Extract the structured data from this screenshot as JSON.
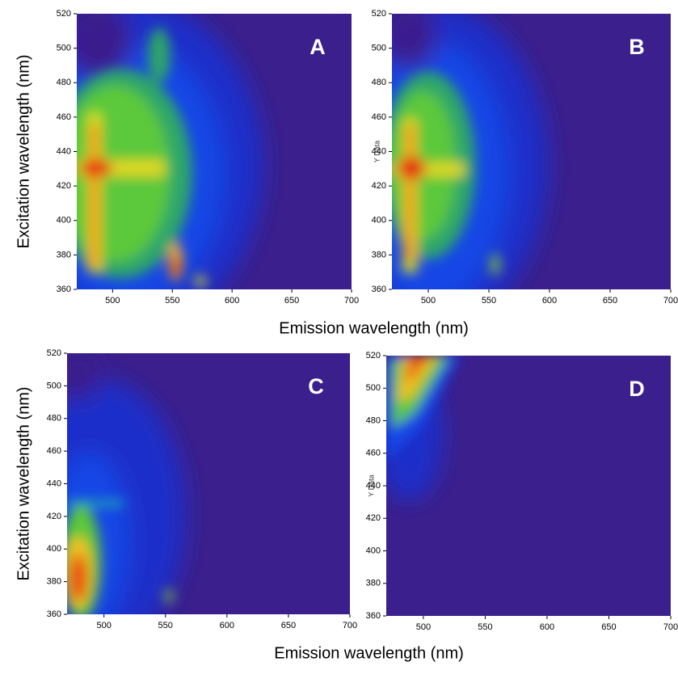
{
  "chart_data": [
    {
      "type": "contour",
      "panel_label": "A",
      "xlabel": "Emission wavelength (nm)",
      "ylabel": "Excitation wavelength (nm)",
      "xlim": [
        470,
        700
      ],
      "ylim": [
        360,
        520
      ],
      "xticks": [
        500,
        550,
        600,
        650,
        700
      ],
      "yticks": [
        360,
        380,
        400,
        420,
        440,
        460,
        480,
        500,
        520
      ]
    },
    {
      "type": "contour",
      "panel_label": "B",
      "ylabel": "Y Data",
      "xlim": [
        470,
        700
      ],
      "ylim": [
        360,
        520
      ],
      "xticks": [
        500,
        550,
        600,
        650,
        700
      ],
      "yticks": [
        360,
        380,
        400,
        420,
        440,
        460,
        480,
        500,
        520
      ]
    },
    {
      "type": "contour",
      "panel_label": "C",
      "xlabel": "Emission wavelength (nm)",
      "ylabel": "Excitation wavelength (nm)",
      "xlim": [
        470,
        700
      ],
      "ylim": [
        360,
        520
      ],
      "xticks": [
        500,
        550,
        600,
        650,
        700
      ],
      "yticks": [
        360,
        380,
        400,
        420,
        440,
        460,
        480,
        500,
        520
      ]
    },
    {
      "type": "contour",
      "panel_label": "D",
      "ylabel": "Y Data",
      "xlim": [
        470,
        700
      ],
      "ylim": [
        360,
        520
      ],
      "xticks": [
        500,
        550,
        600,
        650,
        700
      ],
      "yticks": [
        360,
        380,
        400,
        420,
        440,
        460,
        480,
        500,
        520
      ]
    }
  ]
}
